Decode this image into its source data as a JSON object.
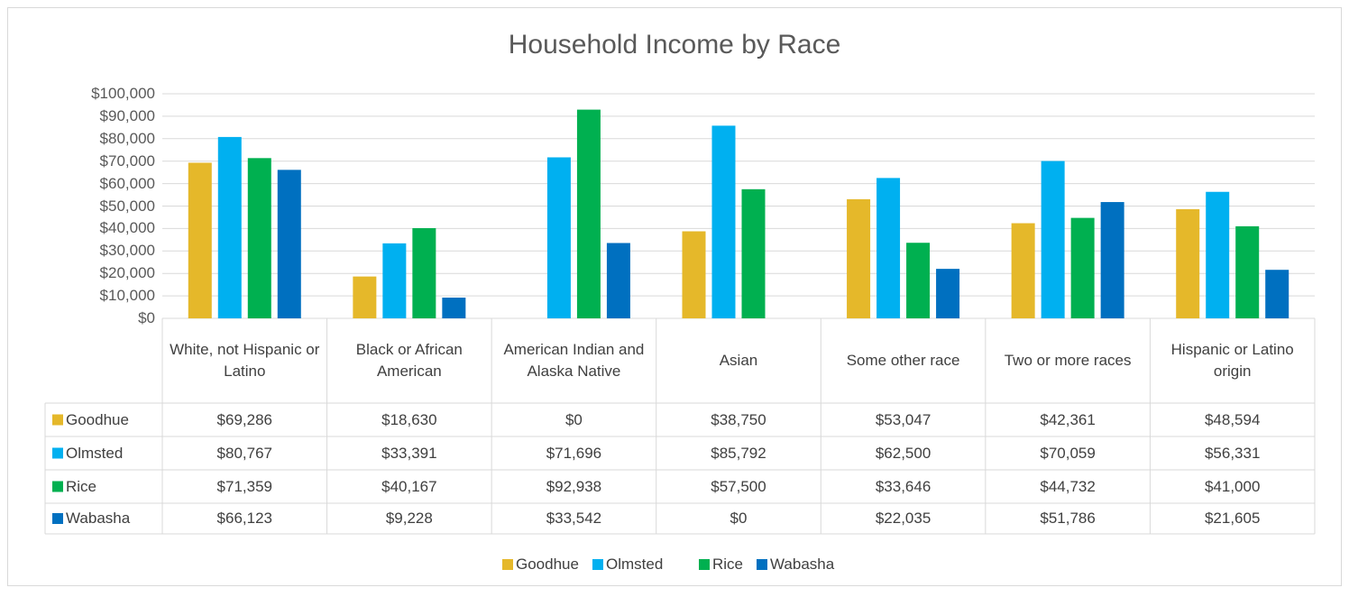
{
  "chart_data": {
    "type": "bar",
    "title": "Household Income by Race",
    "categories": [
      "White, not Hispanic or Latino",
      "Black or African American",
      "American Indian and Alaska Native",
      "Asian",
      "Some other race",
      "Two or more races",
      "Hispanic or Latino origin"
    ],
    "series": [
      {
        "name": "Goodhue",
        "color": "#e5b82a",
        "values": [
          69286,
          18630,
          0,
          38750,
          53047,
          42361,
          48594
        ],
        "value_labels": [
          "$69,286",
          "$18,630",
          "$0",
          "$38,750",
          "$53,047",
          "$42,361",
          "$48,594"
        ]
      },
      {
        "name": "Olmsted",
        "color": "#00b0f0",
        "values": [
          80767,
          33391,
          71696,
          85792,
          62500,
          70059,
          56331
        ],
        "value_labels": [
          "$80,767",
          "$33,391",
          "$71,696",
          "$85,792",
          "$62,500",
          "$70,059",
          "$56,331"
        ]
      },
      {
        "name": "Rice",
        "color": "#00b050",
        "values": [
          71359,
          40167,
          92938,
          57500,
          33646,
          44732,
          41000
        ],
        "value_labels": [
          "$71,359",
          "$40,167",
          "$92,938",
          "$57,500",
          "$33,646",
          "$44,732",
          "$41,000"
        ]
      },
      {
        "name": "Wabasha",
        "color": "#0070c0",
        "values": [
          66123,
          9228,
          33542,
          0,
          22035,
          51786,
          21605
        ],
        "value_labels": [
          "$66,123",
          "$9,228",
          "$33,542",
          "$0",
          "$22,035",
          "$51,786",
          "$21,605"
        ]
      }
    ],
    "ylim": [
      0,
      100000
    ],
    "yticks": [
      {
        "value": 0,
        "label": "$0"
      },
      {
        "value": 10000,
        "label": "$10,000"
      },
      {
        "value": 20000,
        "label": "$20,000"
      },
      {
        "value": 30000,
        "label": "$30,000"
      },
      {
        "value": 40000,
        "label": "$40,000"
      },
      {
        "value": 50000,
        "label": "$50,000"
      },
      {
        "value": 60000,
        "label": "$60,000"
      },
      {
        "value": 70000,
        "label": "$70,000"
      },
      {
        "value": 80000,
        "label": "$80,000"
      },
      {
        "value": 90000,
        "label": "$90,000"
      },
      {
        "value": 100000,
        "label": "$100,000"
      }
    ],
    "grid": true,
    "legend": "bottom"
  }
}
